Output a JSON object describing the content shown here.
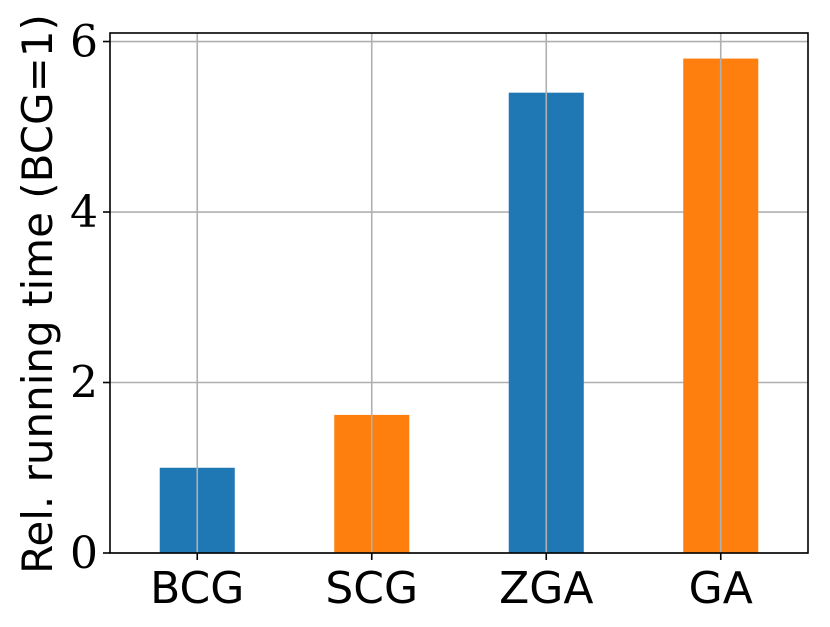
{
  "chart_data": {
    "type": "bar",
    "categories": [
      "BCG",
      "SCG",
      "ZGA",
      "GA"
    ],
    "values": [
      1.0,
      1.62,
      5.4,
      5.8
    ],
    "colors": [
      "#1f77b4",
      "#ff7f0e",
      "#1f77b4",
      "#ff7f0e"
    ],
    "ylabel": "Rel. running time (BCG=1)",
    "xlabel": "",
    "ylim": [
      0,
      6.1
    ],
    "yticks": [
      0,
      2,
      4,
      6
    ],
    "grid": true
  }
}
